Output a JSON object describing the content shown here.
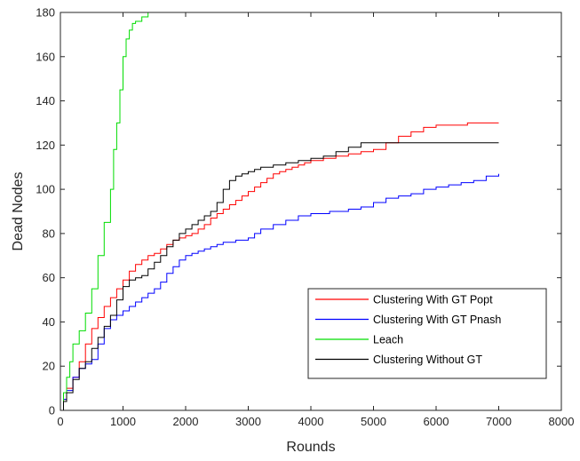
{
  "chart_data": {
    "type": "line",
    "title": "",
    "xlabel": "Rounds",
    "ylabel": "Dead Nodes",
    "xlim": [
      0,
      8000
    ],
    "ylim": [
      0,
      180
    ],
    "xticks": [
      0,
      1000,
      2000,
      3000,
      4000,
      5000,
      6000,
      7000,
      8000
    ],
    "yticks": [
      0,
      20,
      40,
      60,
      80,
      100,
      120,
      140,
      160,
      180
    ],
    "grid": false,
    "legend_position": "bottom-right",
    "series": [
      {
        "name": "Clustering With GT Popt",
        "color": "#ff0000",
        "points": [
          [
            0,
            0
          ],
          [
            50,
            5
          ],
          [
            100,
            10
          ],
          [
            200,
            15
          ],
          [
            300,
            22
          ],
          [
            400,
            30
          ],
          [
            500,
            37
          ],
          [
            600,
            42
          ],
          [
            700,
            47
          ],
          [
            800,
            51
          ],
          [
            900,
            55
          ],
          [
            1000,
            59
          ],
          [
            1100,
            63
          ],
          [
            1200,
            66
          ],
          [
            1300,
            68
          ],
          [
            1400,
            70
          ],
          [
            1500,
            71
          ],
          [
            1600,
            73
          ],
          [
            1700,
            75
          ],
          [
            1800,
            77
          ],
          [
            1900,
            78
          ],
          [
            2000,
            79
          ],
          [
            2100,
            80
          ],
          [
            2200,
            82
          ],
          [
            2300,
            84
          ],
          [
            2400,
            87
          ],
          [
            2500,
            89
          ],
          [
            2600,
            91
          ],
          [
            2700,
            93
          ],
          [
            2800,
            95
          ],
          [
            2900,
            97
          ],
          [
            3000,
            99
          ],
          [
            3100,
            101
          ],
          [
            3200,
            103
          ],
          [
            3300,
            105
          ],
          [
            3400,
            107
          ],
          [
            3500,
            108
          ],
          [
            3600,
            109
          ],
          [
            3700,
            110
          ],
          [
            3800,
            111
          ],
          [
            3900,
            112
          ],
          [
            4000,
            113
          ],
          [
            4200,
            114
          ],
          [
            4400,
            115
          ],
          [
            4600,
            116
          ],
          [
            4800,
            117
          ],
          [
            5000,
            118
          ],
          [
            5200,
            121
          ],
          [
            5400,
            124
          ],
          [
            5600,
            126
          ],
          [
            5800,
            128
          ],
          [
            6000,
            129
          ],
          [
            6500,
            130
          ],
          [
            7000,
            130
          ]
        ]
      },
      {
        "name": "Clustering With GT Pnash",
        "color": "#0000ff",
        "points": [
          [
            0,
            0
          ],
          [
            50,
            5
          ],
          [
            100,
            9
          ],
          [
            200,
            15
          ],
          [
            300,
            19
          ],
          [
            400,
            21
          ],
          [
            500,
            23
          ],
          [
            600,
            30
          ],
          [
            700,
            37
          ],
          [
            800,
            41
          ],
          [
            900,
            43
          ],
          [
            1000,
            45
          ],
          [
            1100,
            47
          ],
          [
            1200,
            49
          ],
          [
            1300,
            51
          ],
          [
            1400,
            53
          ],
          [
            1500,
            55
          ],
          [
            1600,
            58
          ],
          [
            1700,
            62
          ],
          [
            1800,
            65
          ],
          [
            1900,
            68
          ],
          [
            2000,
            70
          ],
          [
            2100,
            71
          ],
          [
            2200,
            72
          ],
          [
            2300,
            73
          ],
          [
            2400,
            74
          ],
          [
            2500,
            75
          ],
          [
            2600,
            76
          ],
          [
            2800,
            77
          ],
          [
            3000,
            78
          ],
          [
            3100,
            80
          ],
          [
            3200,
            82
          ],
          [
            3400,
            84
          ],
          [
            3600,
            86
          ],
          [
            3800,
            88
          ],
          [
            4000,
            89
          ],
          [
            4300,
            90
          ],
          [
            4600,
            91
          ],
          [
            4800,
            92
          ],
          [
            5000,
            94
          ],
          [
            5200,
            96
          ],
          [
            5400,
            97
          ],
          [
            5600,
            98
          ],
          [
            5800,
            100
          ],
          [
            6000,
            101
          ],
          [
            6200,
            102
          ],
          [
            6400,
            103
          ],
          [
            6600,
            104
          ],
          [
            6800,
            106
          ],
          [
            7000,
            107
          ]
        ]
      },
      {
        "name": "Leach",
        "color": "#00dd00",
        "points": [
          [
            0,
            0
          ],
          [
            50,
            8
          ],
          [
            100,
            15
          ],
          [
            150,
            22
          ],
          [
            200,
            30
          ],
          [
            300,
            36
          ],
          [
            400,
            44
          ],
          [
            500,
            55
          ],
          [
            600,
            70
          ],
          [
            700,
            85
          ],
          [
            800,
            100
          ],
          [
            850,
            118
          ],
          [
            900,
            130
          ],
          [
            950,
            145
          ],
          [
            1000,
            160
          ],
          [
            1050,
            168
          ],
          [
            1100,
            172
          ],
          [
            1150,
            175
          ],
          [
            1200,
            176
          ],
          [
            1300,
            178
          ],
          [
            1400,
            180
          ],
          [
            7000,
            180
          ]
        ]
      },
      {
        "name": "Clustering Without GT",
        "color": "#000000",
        "points": [
          [
            0,
            0
          ],
          [
            50,
            4
          ],
          [
            100,
            8
          ],
          [
            200,
            14
          ],
          [
            300,
            19
          ],
          [
            400,
            22
          ],
          [
            500,
            28
          ],
          [
            600,
            33
          ],
          [
            700,
            38
          ],
          [
            800,
            43
          ],
          [
            900,
            50
          ],
          [
            1000,
            56
          ],
          [
            1100,
            59
          ],
          [
            1200,
            60
          ],
          [
            1300,
            61
          ],
          [
            1400,
            64
          ],
          [
            1500,
            67
          ],
          [
            1600,
            70
          ],
          [
            1700,
            74
          ],
          [
            1800,
            77
          ],
          [
            1900,
            80
          ],
          [
            2000,
            82
          ],
          [
            2100,
            84
          ],
          [
            2200,
            86
          ],
          [
            2300,
            88
          ],
          [
            2400,
            90
          ],
          [
            2500,
            94
          ],
          [
            2600,
            100
          ],
          [
            2700,
            104
          ],
          [
            2800,
            106
          ],
          [
            2900,
            107
          ],
          [
            3000,
            108
          ],
          [
            3100,
            109
          ],
          [
            3200,
            110
          ],
          [
            3400,
            111
          ],
          [
            3600,
            112
          ],
          [
            3800,
            113
          ],
          [
            4000,
            114
          ],
          [
            4200,
            115
          ],
          [
            4400,
            117
          ],
          [
            4600,
            119
          ],
          [
            4800,
            121
          ],
          [
            5000,
            121
          ],
          [
            6000,
            121
          ],
          [
            7000,
            121
          ]
        ]
      }
    ]
  }
}
